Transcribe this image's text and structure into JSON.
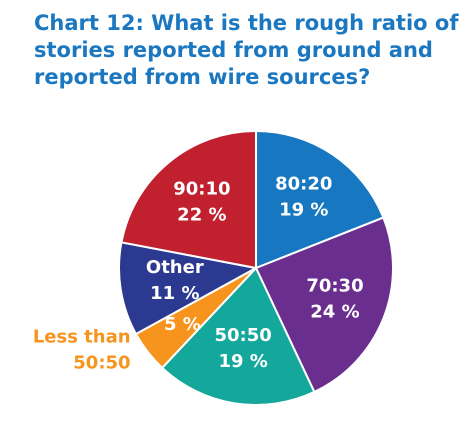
{
  "chart_data": {
    "type": "pie",
    "title": [
      "Chart 12: What is the rough ratio of",
      "stories reported from ground and",
      "reported from wire sources?"
    ],
    "slices": [
      {
        "label": "80:20",
        "value": 19,
        "value_label": "19 %",
        "color": "#1777c1"
      },
      {
        "label": "70:30",
        "value": 24,
        "value_label": "24 %",
        "color": "#6a2e8e"
      },
      {
        "label": "50:50",
        "value": 19,
        "value_label": "19 %",
        "color": "#14a79b"
      },
      {
        "label": "Less than 50:50",
        "label_lines": [
          "Less than",
          "50:50"
        ],
        "value": 5,
        "value_label": "5 %",
        "color": "#f7941d"
      },
      {
        "label": "Other",
        "value": 11,
        "value_label": "11 %",
        "color": "#2b3990"
      },
      {
        "label": "90:10",
        "value": 22,
        "value_label": "22 %",
        "color": "#c1202f"
      }
    ]
  }
}
